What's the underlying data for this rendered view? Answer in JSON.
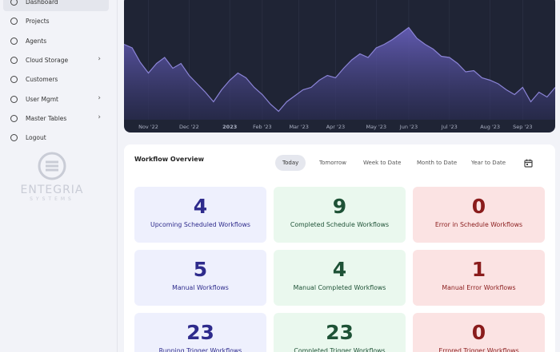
{
  "sidebar": {
    "items": [
      {
        "label": "Dashboard",
        "active": true
      },
      {
        "label": "Projects"
      },
      {
        "label": "Agents"
      },
      {
        "label": "Cloud Storage",
        "submenu": true
      },
      {
        "label": "Customers"
      },
      {
        "label": "User Mgmt",
        "submenu": true
      },
      {
        "label": "Master Tables",
        "submenu": true
      },
      {
        "label": "Logout"
      }
    ],
    "logo": {
      "name": "ENTEGRIA",
      "tagline": "SYSTEMS"
    }
  },
  "chart_data": {
    "type": "area",
    "color": "#8b84d6",
    "grid": true,
    "values": [
      63,
      60,
      48,
      39,
      47,
      52,
      43,
      47,
      37,
      30,
      23,
      15,
      25,
      33,
      39,
      35,
      27,
      21,
      13,
      7,
      15,
      20,
      25,
      27,
      33,
      37,
      35,
      43,
      50,
      55,
      52,
      60,
      63,
      67,
      72,
      77,
      68,
      63,
      59,
      53,
      52,
      47,
      40,
      41,
      35,
      33,
      30,
      25,
      21,
      27,
      15,
      23,
      19,
      27
    ],
    "xlim": [
      0,
      53
    ],
    "ylim": [
      0,
      100
    ],
    "xticks": [
      {
        "value": 3,
        "label": "Nov '22"
      },
      {
        "value": 8,
        "label": "Dec '22"
      },
      {
        "value": 13,
        "label": "2023"
      },
      {
        "value": 17,
        "label": "Feb '23"
      },
      {
        "value": 21.5,
        "label": "Mar '23"
      },
      {
        "value": 26,
        "label": "Apr '23"
      },
      {
        "value": 31,
        "label": "May '23"
      },
      {
        "value": 35,
        "label": "Jun '23"
      },
      {
        "value": 40,
        "label": "Jul '23"
      },
      {
        "value": 45,
        "label": "Aug '23"
      },
      {
        "value": 49,
        "label": "Sep '23"
      }
    ]
  },
  "workflow": {
    "title": "Workflow Overview",
    "tabs": [
      {
        "label": "Today",
        "active": true
      },
      {
        "label": "Tomorrow"
      },
      {
        "label": "Week to Date"
      },
      {
        "label": "Month to Date"
      },
      {
        "label": "Year to Date"
      }
    ],
    "cards": [
      [
        {
          "value": "4",
          "label": "Upcoming Scheduled Workflows"
        },
        {
          "value": "9",
          "label": "Completed Schedule Workflows"
        },
        {
          "value": "0",
          "label": "Error in Schedule Workflows"
        }
      ],
      [
        {
          "value": "5",
          "label": "Manual Workflows"
        },
        {
          "value": "4",
          "label": "Manual Completed Workflows"
        },
        {
          "value": "1",
          "label": "Manual Error Workflows"
        }
      ],
      [
        {
          "value": "23",
          "label": "Running Trigger Workflows"
        },
        {
          "value": "23",
          "label": "Completed Trigger Workflows"
        },
        {
          "value": "0",
          "label": "Errored Trigger Workflows"
        }
      ]
    ]
  }
}
